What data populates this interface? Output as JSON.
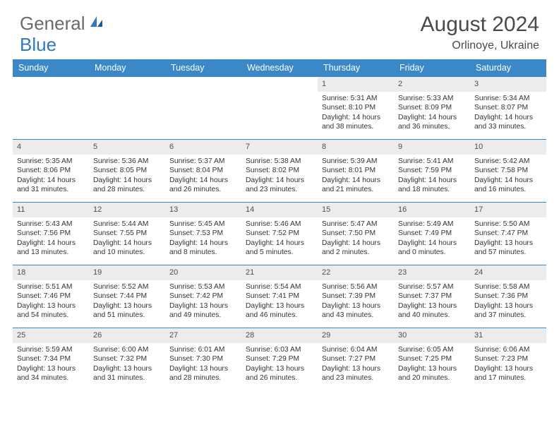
{
  "logo": {
    "text1": "General",
    "text2": "Blue"
  },
  "title": "August 2024",
  "location": "Orlinoye, Ukraine",
  "colors": {
    "header_bg": "#3b88c8",
    "header_text": "#ffffff",
    "daynum_bg": "#ececec",
    "row_border": "#3b88c8",
    "body_text": "#343434",
    "title_text": "#4a4a4a",
    "logo_gray": "#6b6b6b",
    "logo_blue": "#2f7ac0"
  },
  "day_names": [
    "Sunday",
    "Monday",
    "Tuesday",
    "Wednesday",
    "Thursday",
    "Friday",
    "Saturday"
  ],
  "weeks": [
    [
      {
        "n": "",
        "sr": "",
        "ss": "",
        "dl": ""
      },
      {
        "n": "",
        "sr": "",
        "ss": "",
        "dl": ""
      },
      {
        "n": "",
        "sr": "",
        "ss": "",
        "dl": ""
      },
      {
        "n": "",
        "sr": "",
        "ss": "",
        "dl": ""
      },
      {
        "n": "1",
        "sr": "Sunrise: 5:31 AM",
        "ss": "Sunset: 8:10 PM",
        "dl": "Daylight: 14 hours and 38 minutes."
      },
      {
        "n": "2",
        "sr": "Sunrise: 5:33 AM",
        "ss": "Sunset: 8:09 PM",
        "dl": "Daylight: 14 hours and 36 minutes."
      },
      {
        "n": "3",
        "sr": "Sunrise: 5:34 AM",
        "ss": "Sunset: 8:07 PM",
        "dl": "Daylight: 14 hours and 33 minutes."
      }
    ],
    [
      {
        "n": "4",
        "sr": "Sunrise: 5:35 AM",
        "ss": "Sunset: 8:06 PM",
        "dl": "Daylight: 14 hours and 31 minutes."
      },
      {
        "n": "5",
        "sr": "Sunrise: 5:36 AM",
        "ss": "Sunset: 8:05 PM",
        "dl": "Daylight: 14 hours and 28 minutes."
      },
      {
        "n": "6",
        "sr": "Sunrise: 5:37 AM",
        "ss": "Sunset: 8:04 PM",
        "dl": "Daylight: 14 hours and 26 minutes."
      },
      {
        "n": "7",
        "sr": "Sunrise: 5:38 AM",
        "ss": "Sunset: 8:02 PM",
        "dl": "Daylight: 14 hours and 23 minutes."
      },
      {
        "n": "8",
        "sr": "Sunrise: 5:39 AM",
        "ss": "Sunset: 8:01 PM",
        "dl": "Daylight: 14 hours and 21 minutes."
      },
      {
        "n": "9",
        "sr": "Sunrise: 5:41 AM",
        "ss": "Sunset: 7:59 PM",
        "dl": "Daylight: 14 hours and 18 minutes."
      },
      {
        "n": "10",
        "sr": "Sunrise: 5:42 AM",
        "ss": "Sunset: 7:58 PM",
        "dl": "Daylight: 14 hours and 16 minutes."
      }
    ],
    [
      {
        "n": "11",
        "sr": "Sunrise: 5:43 AM",
        "ss": "Sunset: 7:56 PM",
        "dl": "Daylight: 14 hours and 13 minutes."
      },
      {
        "n": "12",
        "sr": "Sunrise: 5:44 AM",
        "ss": "Sunset: 7:55 PM",
        "dl": "Daylight: 14 hours and 10 minutes."
      },
      {
        "n": "13",
        "sr": "Sunrise: 5:45 AM",
        "ss": "Sunset: 7:53 PM",
        "dl": "Daylight: 14 hours and 8 minutes."
      },
      {
        "n": "14",
        "sr": "Sunrise: 5:46 AM",
        "ss": "Sunset: 7:52 PM",
        "dl": "Daylight: 14 hours and 5 minutes."
      },
      {
        "n": "15",
        "sr": "Sunrise: 5:47 AM",
        "ss": "Sunset: 7:50 PM",
        "dl": "Daylight: 14 hours and 2 minutes."
      },
      {
        "n": "16",
        "sr": "Sunrise: 5:49 AM",
        "ss": "Sunset: 7:49 PM",
        "dl": "Daylight: 14 hours and 0 minutes."
      },
      {
        "n": "17",
        "sr": "Sunrise: 5:50 AM",
        "ss": "Sunset: 7:47 PM",
        "dl": "Daylight: 13 hours and 57 minutes."
      }
    ],
    [
      {
        "n": "18",
        "sr": "Sunrise: 5:51 AM",
        "ss": "Sunset: 7:46 PM",
        "dl": "Daylight: 13 hours and 54 minutes."
      },
      {
        "n": "19",
        "sr": "Sunrise: 5:52 AM",
        "ss": "Sunset: 7:44 PM",
        "dl": "Daylight: 13 hours and 51 minutes."
      },
      {
        "n": "20",
        "sr": "Sunrise: 5:53 AM",
        "ss": "Sunset: 7:42 PM",
        "dl": "Daylight: 13 hours and 49 minutes."
      },
      {
        "n": "21",
        "sr": "Sunrise: 5:54 AM",
        "ss": "Sunset: 7:41 PM",
        "dl": "Daylight: 13 hours and 46 minutes."
      },
      {
        "n": "22",
        "sr": "Sunrise: 5:56 AM",
        "ss": "Sunset: 7:39 PM",
        "dl": "Daylight: 13 hours and 43 minutes."
      },
      {
        "n": "23",
        "sr": "Sunrise: 5:57 AM",
        "ss": "Sunset: 7:37 PM",
        "dl": "Daylight: 13 hours and 40 minutes."
      },
      {
        "n": "24",
        "sr": "Sunrise: 5:58 AM",
        "ss": "Sunset: 7:36 PM",
        "dl": "Daylight: 13 hours and 37 minutes."
      }
    ],
    [
      {
        "n": "25",
        "sr": "Sunrise: 5:59 AM",
        "ss": "Sunset: 7:34 PM",
        "dl": "Daylight: 13 hours and 34 minutes."
      },
      {
        "n": "26",
        "sr": "Sunrise: 6:00 AM",
        "ss": "Sunset: 7:32 PM",
        "dl": "Daylight: 13 hours and 31 minutes."
      },
      {
        "n": "27",
        "sr": "Sunrise: 6:01 AM",
        "ss": "Sunset: 7:30 PM",
        "dl": "Daylight: 13 hours and 28 minutes."
      },
      {
        "n": "28",
        "sr": "Sunrise: 6:03 AM",
        "ss": "Sunset: 7:29 PM",
        "dl": "Daylight: 13 hours and 26 minutes."
      },
      {
        "n": "29",
        "sr": "Sunrise: 6:04 AM",
        "ss": "Sunset: 7:27 PM",
        "dl": "Daylight: 13 hours and 23 minutes."
      },
      {
        "n": "30",
        "sr": "Sunrise: 6:05 AM",
        "ss": "Sunset: 7:25 PM",
        "dl": "Daylight: 13 hours and 20 minutes."
      },
      {
        "n": "31",
        "sr": "Sunrise: 6:06 AM",
        "ss": "Sunset: 7:23 PM",
        "dl": "Daylight: 13 hours and 17 minutes."
      }
    ]
  ]
}
